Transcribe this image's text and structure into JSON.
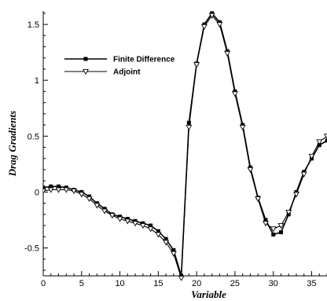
{
  "chart_data": {
    "type": "line",
    "title": "",
    "xlabel": "Variable",
    "ylabel": "Drag Gradients",
    "xlim": [
      0,
      37
    ],
    "ylim": [
      -0.75,
      1.62
    ],
    "xticks": [
      0,
      5,
      10,
      15,
      20,
      25,
      30,
      35
    ],
    "yticks": [
      -0.5,
      0,
      0.5,
      1,
      1.5
    ],
    "ytick_labels": [
      "-0.5",
      "0",
      "0.5",
      "1",
      "1.5"
    ],
    "grid": false,
    "legend_position": "top-left",
    "series": [
      {
        "name": "Finite Difference",
        "marker": "filled-square",
        "color": "#000000",
        "x": [
          0,
          1,
          2,
          3,
          4,
          5,
          6,
          7,
          8,
          9,
          10,
          11,
          12,
          13,
          14,
          15,
          16,
          17,
          18,
          19,
          20,
          21,
          22,
          23,
          24,
          25,
          26,
          27,
          28,
          29,
          30,
          31,
          32,
          33,
          34,
          35,
          36,
          37
        ],
        "y": [
          0.04,
          0.05,
          0.05,
          0.04,
          0.02,
          0.0,
          -0.04,
          -0.1,
          -0.15,
          -0.2,
          -0.22,
          -0.24,
          -0.26,
          -0.28,
          -0.3,
          -0.35,
          -0.42,
          -0.52,
          -0.75,
          0.62,
          1.15,
          1.5,
          1.6,
          1.52,
          1.26,
          0.9,
          0.6,
          0.22,
          -0.05,
          -0.25,
          -0.38,
          -0.36,
          -0.2,
          0.0,
          0.18,
          0.3,
          0.42,
          0.46
        ]
      },
      {
        "name": "Adjoint",
        "marker": "open-triangle-down",
        "color": "#000000",
        "x": [
          0,
          1,
          2,
          3,
          4,
          5,
          6,
          7,
          8,
          9,
          10,
          11,
          12,
          13,
          14,
          15,
          16,
          17,
          18,
          19,
          20,
          21,
          22,
          23,
          24,
          25,
          26,
          27,
          28,
          29,
          30,
          31,
          32,
          33,
          34,
          35,
          36,
          37
        ],
        "y": [
          0.01,
          0.02,
          0.02,
          0.02,
          0.01,
          -0.02,
          -0.06,
          -0.12,
          -0.17,
          -0.21,
          -0.24,
          -0.26,
          -0.28,
          -0.3,
          -0.33,
          -0.38,
          -0.45,
          -0.55,
          -0.77,
          0.58,
          1.14,
          1.48,
          1.58,
          1.5,
          1.24,
          0.88,
          0.58,
          0.2,
          -0.06,
          -0.28,
          -0.33,
          -0.3,
          -0.18,
          -0.02,
          0.16,
          0.32,
          0.45,
          0.5
        ]
      }
    ]
  }
}
